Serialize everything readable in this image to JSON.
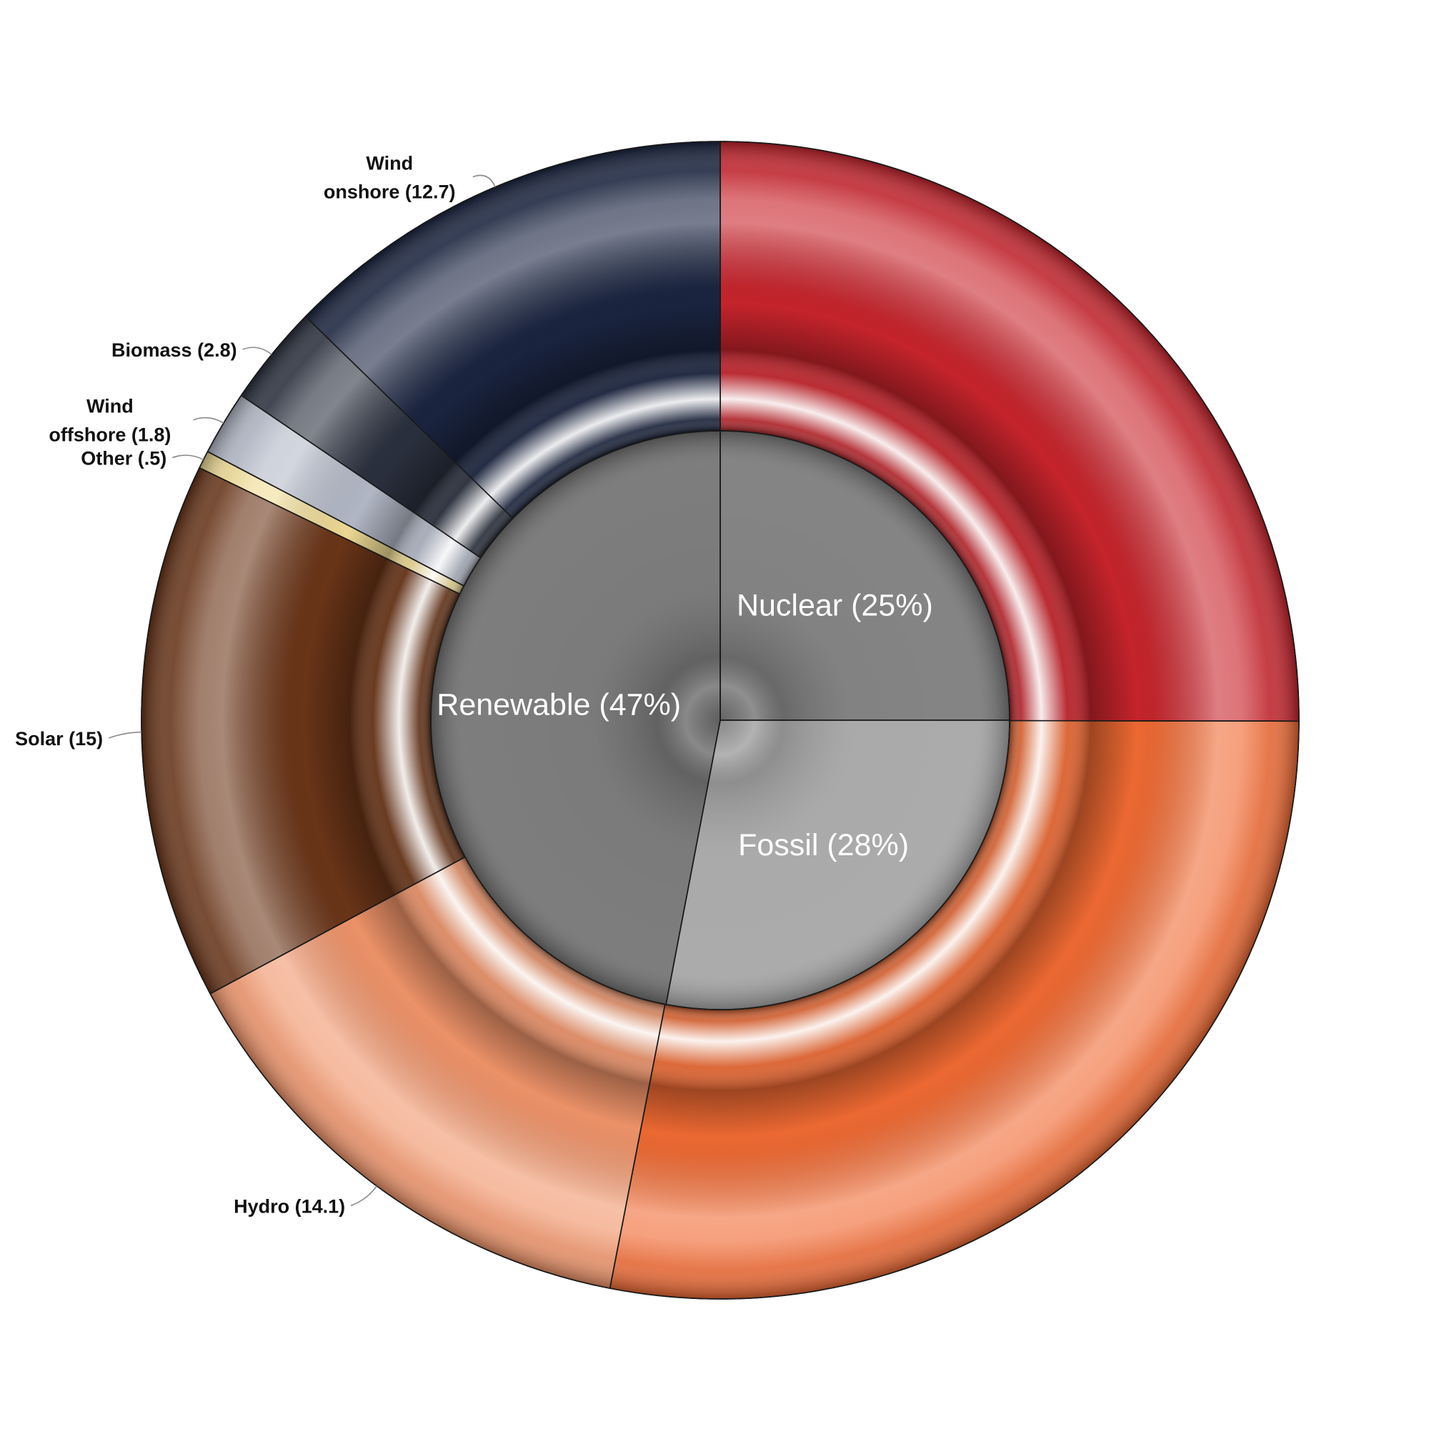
{
  "chart_data": {
    "type": "pie",
    "subtype": "sunburst",
    "inner_ring": [
      {
        "label": "Nuclear (25%)",
        "name": "Nuclear",
        "value": 25,
        "color": "#777777"
      },
      {
        "label": "Fossil (28%)",
        "name": "Fossil",
        "value": 28,
        "color": "#a2a2a2"
      },
      {
        "label": "Renewable (47%)",
        "name": "Renewable",
        "value": 47,
        "color": "#6f6f6f"
      }
    ],
    "outer_ring": [
      {
        "parent": "Nuclear",
        "label": "",
        "value": 25,
        "color": "#c8242c"
      },
      {
        "parent": "Fossil",
        "label": "",
        "value": 28,
        "color": "#f06a33"
      },
      {
        "parent": "Renewable",
        "label": "Hydro (14.1)",
        "value": 14.1,
        "color": "#f0946a"
      },
      {
        "parent": "Renewable",
        "label": "Solar (15)",
        "value": 15,
        "color": "#6b3518"
      },
      {
        "parent": "Renewable",
        "label": "Other (.5)",
        "value": 0.5,
        "color": "#f0dc96"
      },
      {
        "parent": "Renewable",
        "label": "Wind offshore (1.8)",
        "value": 1.8,
        "color": "#b4bac8"
      },
      {
        "parent": "Renewable",
        "label": "Biomass (2.8)",
        "value": 2.8,
        "color": "#2a303e"
      },
      {
        "parent": "Renewable",
        "label": "Wind onshore (12.7)",
        "value": 12.7,
        "color": "#1a2440"
      }
    ],
    "start": "top",
    "direction": "clockwise"
  }
}
